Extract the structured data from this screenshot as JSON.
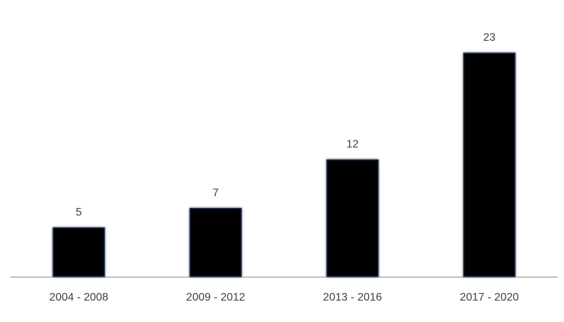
{
  "chart_data": {
    "type": "bar",
    "categories": [
      "2004 - 2008",
      "2009 - 2012",
      "2013 - 2016",
      "2017 - 2020"
    ],
    "values": [
      5,
      7,
      12,
      23
    ],
    "color": "#000000",
    "grid": false
  }
}
